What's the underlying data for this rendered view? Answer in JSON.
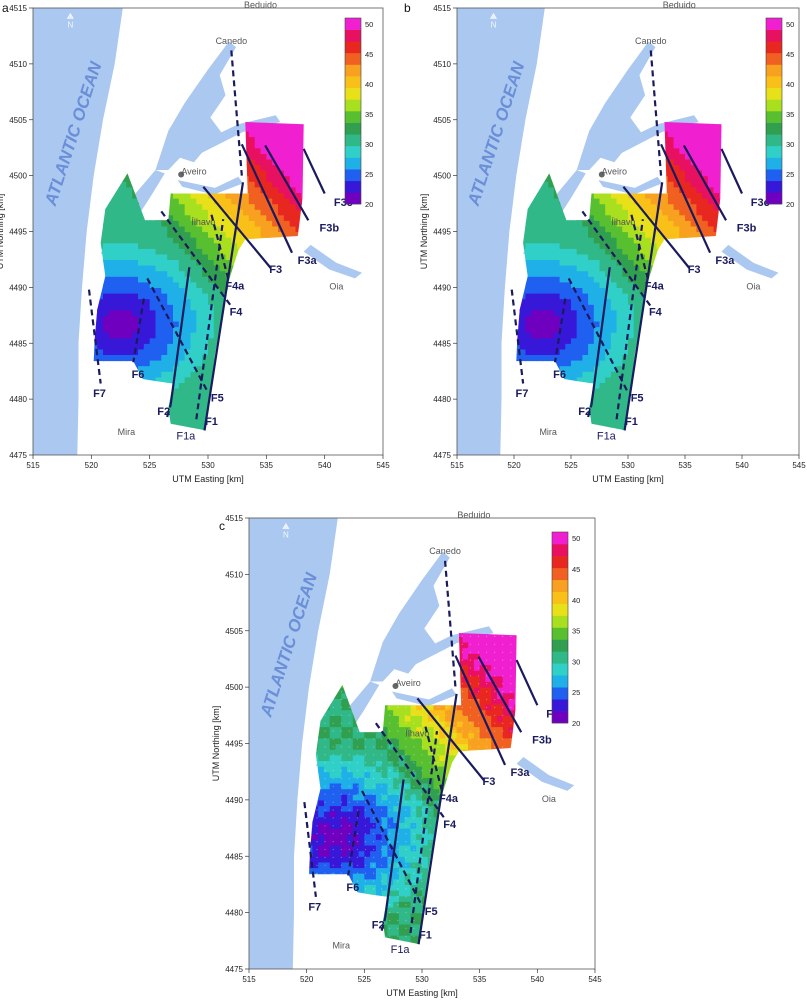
{
  "axes": {
    "xlabel": "UTM Easting [km]",
    "ylabel": "UTM Northing [km]",
    "xticks": [
      "515",
      "520",
      "525",
      "530",
      "535",
      "540",
      "545"
    ],
    "yticks": [
      "4475",
      "4480",
      "4485",
      "4490",
      "4495",
      "4500",
      "4505",
      "4510",
      "4515"
    ],
    "xlim": [
      515,
      545
    ],
    "ylim": [
      4475,
      4515
    ]
  },
  "ocean_label": "ATLANTIC OCEAN",
  "north_label": "N",
  "places": [
    {
      "name": "Beduido",
      "e": 534.5,
      "n": 4515.0
    },
    {
      "name": "Canedo",
      "e": 532.0,
      "n": 4511.8
    },
    {
      "name": "Aveiro",
      "e": 528.8,
      "n": 4500.1
    },
    {
      "name": "Ílhavo",
      "e": 529.6,
      "n": 4495.6
    },
    {
      "name": "Oia",
      "e": 541.0,
      "n": 4489.8
    },
    {
      "name": "Mira",
      "e": 523.0,
      "n": 4476.8
    }
  ],
  "faults": [
    {
      "label": "F1",
      "style": "solid",
      "e1": 529.7,
      "n1": 4477.2,
      "e2": 533.0,
      "n2": 4499.4,
      "le": 530.3,
      "ln": 4477.7
    },
    {
      "label": "F1a",
      "style": "dashed",
      "e1": 529.0,
      "n1": 4478.2,
      "e2": 531.3,
      "n2": 4496.1,
      "le": 528.1,
      "ln": 4476.4
    },
    {
      "label": "F2",
      "style": "solid",
      "e1": 526.8,
      "n1": 4479.5,
      "e2": 528.4,
      "n2": 4491.8,
      "le": 526.2,
      "ln": 4478.6
    },
    {
      "label": "F2 extension",
      "style": "dashed",
      "e1": 526.5,
      "n1": 4478.4,
      "e2": 526.8,
      "n2": 4479.5
    },
    {
      "label": "F3",
      "style": "solid",
      "e1": 529.6,
      "n1": 4499.0,
      "e2": 535.4,
      "n2": 4491.7,
      "le": 535.8,
      "ln": 4491.3
    },
    {
      "label": "F3a",
      "style": "solid",
      "e1": 532.9,
      "n1": 4502.8,
      "e2": 537.2,
      "n2": 4493.1,
      "le": 538.5,
      "ln": 4492.1
    },
    {
      "label": "F3b",
      "style": "solid",
      "e1": 534.9,
      "n1": 4502.7,
      "e2": 538.6,
      "n2": 4496.0,
      "le": 540.4,
      "ln": 4495.0
    },
    {
      "label": "F3c",
      "style": "solid",
      "e1": 538.2,
      "n1": 4502.4,
      "e2": 540.0,
      "n2": 4498.4,
      "le": 541.6,
      "ln": 4497.3
    },
    {
      "label": "F4",
      "style": "dashed",
      "e1": 526.0,
      "n1": 4496.8,
      "e2": 532.0,
      "n2": 4488.3,
      "le": 532.4,
      "ln": 4487.5
    },
    {
      "label": "F4a",
      "style": "dashed",
      "e1": 530.3,
      "n1": 4496.5,
      "e2": 531.8,
      "n2": 4490.5,
      "le": 532.3,
      "ln": 4489.8
    },
    {
      "label": "F5",
      "style": "dashed",
      "e1": 524.8,
      "n1": 4490.8,
      "e2": 530.0,
      "n2": 4480.6,
      "le": 530.8,
      "ln": 4479.8
    },
    {
      "label": "F6",
      "style": "dashed",
      "e1": 524.5,
      "n1": 4489.0,
      "e2": 523.6,
      "n2": 4483.3,
      "le": 524.0,
      "ln": 4481.9
    },
    {
      "label": "F7",
      "style": "dashed",
      "e1": 519.8,
      "n1": 4489.8,
      "e2": 520.8,
      "n2": 4481.4,
      "le": 520.7,
      "ln": 4480.2
    },
    {
      "label": "Canedo fault",
      "style": "dashed",
      "e1": 532.0,
      "n1": 4511.2,
      "e2": 532.9,
      "n2": 4500.0
    }
  ],
  "colorbar": {
    "ticks": [
      "20",
      "25",
      "30",
      "35",
      "40",
      "45",
      "50"
    ],
    "min": 20,
    "max": 51,
    "colors": [
      "#7000c0",
      "#3818d8",
      "#2060f0",
      "#20b0e8",
      "#30d0c8",
      "#30b888",
      "#30a050",
      "#58c030",
      "#a8e020",
      "#e8e018",
      "#f8c018",
      "#f8a020",
      "#f06020",
      "#e82820",
      "#e81060",
      "#f020d0"
    ]
  },
  "panels": [
    {
      "id": "a",
      "label": "a",
      "variant": 0
    },
    {
      "id": "b",
      "label": "b",
      "variant": 1
    },
    {
      "id": "c",
      "label": "c",
      "variant": 2
    }
  ]
}
